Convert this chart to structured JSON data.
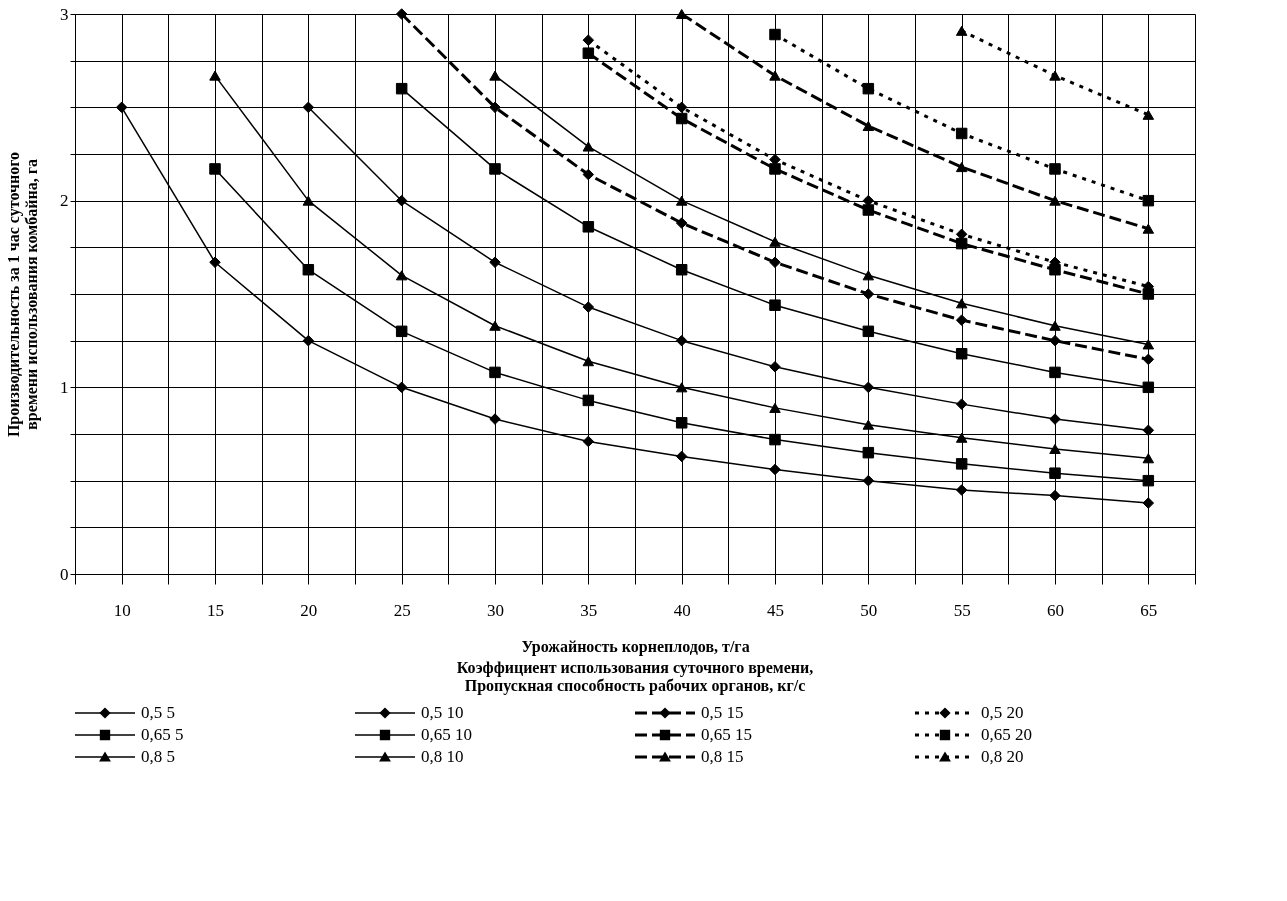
{
  "chart_data": {
    "type": "line",
    "xlabel": "Урожайность корнеплодов, т/га",
    "ylabel": "Производительность за 1 час суточного времени использования комбайна, га",
    "legend_title": "Коэффициент использования суточного времени,\nПропускная способность рабочих органов, кг/с",
    "categories": [
      "10",
      "15",
      "20",
      "25",
      "30",
      "35",
      "40",
      "45",
      "50",
      "55",
      "60",
      "65"
    ],
    "ylim": [
      0,
      3
    ],
    "yticks": [
      0,
      {
        "value": 0.25,
        "label": null
      },
      {
        "value": 0.5,
        "label": null
      },
      {
        "value": 0.75,
        "label": null
      },
      1,
      {
        "value": 1.25,
        "label": null
      },
      {
        "value": 1.5,
        "label": null
      },
      {
        "value": 1.75,
        "label": null
      },
      2,
      {
        "value": 2.25,
        "label": null
      },
      {
        "value": 2.5,
        "label": null
      },
      {
        "value": 2.75,
        "label": null
      },
      3
    ],
    "grid": true,
    "legend": "bottom",
    "series": [
      {
        "name": "0,5 5",
        "color": "#000000",
        "marker": "diamond",
        "line_style": "solid",
        "values": [
          2.5,
          1.67,
          1.25,
          1.0,
          0.83,
          0.71,
          0.63,
          0.56,
          0.5,
          0.45,
          0.42,
          0.38
        ]
      },
      {
        "name": "0,65 5",
        "color": "#000000",
        "marker": "square",
        "line_style": "solid",
        "values": [
          null,
          2.17,
          1.63,
          1.3,
          1.08,
          0.93,
          0.81,
          0.72,
          0.65,
          0.59,
          0.54,
          0.5
        ]
      },
      {
        "name": "0,8 5",
        "color": "#000000",
        "marker": "triangle",
        "line_style": "solid",
        "values": [
          null,
          2.67,
          2.0,
          1.6,
          1.33,
          1.14,
          1.0,
          0.89,
          0.8,
          0.73,
          0.67,
          0.62
        ]
      },
      {
        "name": "0,5 10",
        "color": "#000000",
        "marker": "diamond",
        "line_style": "solid",
        "values": [
          null,
          null,
          2.5,
          2.0,
          1.67,
          1.43,
          1.25,
          1.11,
          1.0,
          0.91,
          0.83,
          0.77
        ]
      },
      {
        "name": "0,65 10",
        "color": "#000000",
        "marker": "square",
        "line_style": "solid",
        "values": [
          null,
          null,
          null,
          2.6,
          2.17,
          1.86,
          1.63,
          1.44,
          1.3,
          1.18,
          1.08,
          1.0
        ]
      },
      {
        "name": "0,8 10",
        "color": "#000000",
        "marker": "triangle",
        "line_style": "solid",
        "values": [
          null,
          null,
          null,
          null,
          2.67,
          2.29,
          2.0,
          1.78,
          1.6,
          1.45,
          1.33,
          1.23
        ]
      },
      {
        "name": "0,5 15",
        "color": "#000000",
        "marker": "diamond",
        "line_style": "dashed",
        "values": [
          null,
          null,
          null,
          3.0,
          2.5,
          2.14,
          1.88,
          1.67,
          1.5,
          1.36,
          1.25,
          1.15
        ]
      },
      {
        "name": "0,65 15",
        "color": "#000000",
        "marker": "square",
        "line_style": "dashed",
        "values": [
          null,
          null,
          null,
          null,
          null,
          2.79,
          2.44,
          2.17,
          1.95,
          1.77,
          1.63,
          1.5
        ]
      },
      {
        "name": "0,8 15",
        "color": "#000000",
        "marker": "triangle",
        "line_style": "dashed",
        "values": [
          null,
          null,
          null,
          null,
          null,
          null,
          3.0,
          2.67,
          2.4,
          2.18,
          2.0,
          1.85
        ]
      },
      {
        "name": "0,5 20",
        "color": "#000000",
        "marker": "diamond",
        "line_style": "dotted",
        "values": [
          null,
          null,
          null,
          null,
          null,
          2.86,
          2.5,
          2.22,
          2.0,
          1.82,
          1.67,
          1.54
        ]
      },
      {
        "name": "0,65 20",
        "color": "#000000",
        "marker": "square",
        "line_style": "dotted",
        "values": [
          null,
          null,
          null,
          null,
          null,
          null,
          null,
          2.89,
          2.6,
          2.36,
          2.17,
          2.0
        ]
      },
      {
        "name": "0,8 20",
        "color": "#000000",
        "marker": "triangle",
        "line_style": "dotted",
        "values": [
          null,
          null,
          null,
          null,
          null,
          null,
          null,
          null,
          null,
          2.91,
          2.67,
          2.46
        ]
      }
    ]
  }
}
